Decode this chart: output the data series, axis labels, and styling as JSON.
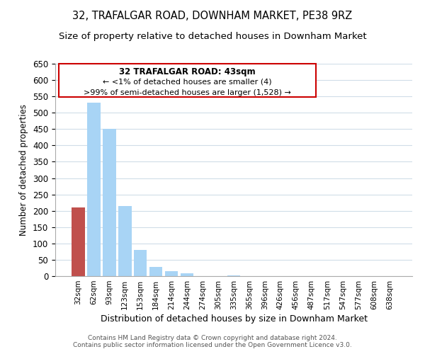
{
  "title": "32, TRAFALGAR ROAD, DOWNHAM MARKET, PE38 9RZ",
  "subtitle": "Size of property relative to detached houses in Downham Market",
  "xlabel": "Distribution of detached houses by size in Downham Market",
  "ylabel": "Number of detached properties",
  "bar_labels": [
    "32sqm",
    "62sqm",
    "93sqm",
    "123sqm",
    "153sqm",
    "184sqm",
    "214sqm",
    "244sqm",
    "274sqm",
    "305sqm",
    "335sqm",
    "365sqm",
    "396sqm",
    "426sqm",
    "456sqm",
    "487sqm",
    "517sqm",
    "547sqm",
    "577sqm",
    "608sqm",
    "638sqm"
  ],
  "bar_values": [
    210,
    530,
    450,
    215,
    80,
    28,
    16,
    8,
    0,
    0,
    2,
    0,
    0,
    0,
    0,
    1,
    0,
    0,
    0,
    1,
    1
  ],
  "bar_color": "#a8d4f5",
  "highlight_bar_index": 0,
  "highlight_bar_color": "#c0504d",
  "ylim": [
    0,
    650
  ],
  "yticks": [
    0,
    50,
    100,
    150,
    200,
    250,
    300,
    350,
    400,
    450,
    500,
    550,
    600,
    650
  ],
  "annotation_title": "32 TRAFALGAR ROAD: 43sqm",
  "annotation_line1": "← <1% of detached houses are smaller (4)",
  "annotation_line2": ">99% of semi-detached houses are larger (1,528) →",
  "annotation_box_color": "#ffffff",
  "annotation_border_color": "#cc0000",
  "footer1": "Contains HM Land Registry data © Crown copyright and database right 2024.",
  "footer2": "Contains public sector information licensed under the Open Government Licence v3.0.",
  "bg_color": "#ffffff",
  "grid_color": "#d0dde8",
  "title_fontsize": 10.5,
  "subtitle_fontsize": 9.5
}
